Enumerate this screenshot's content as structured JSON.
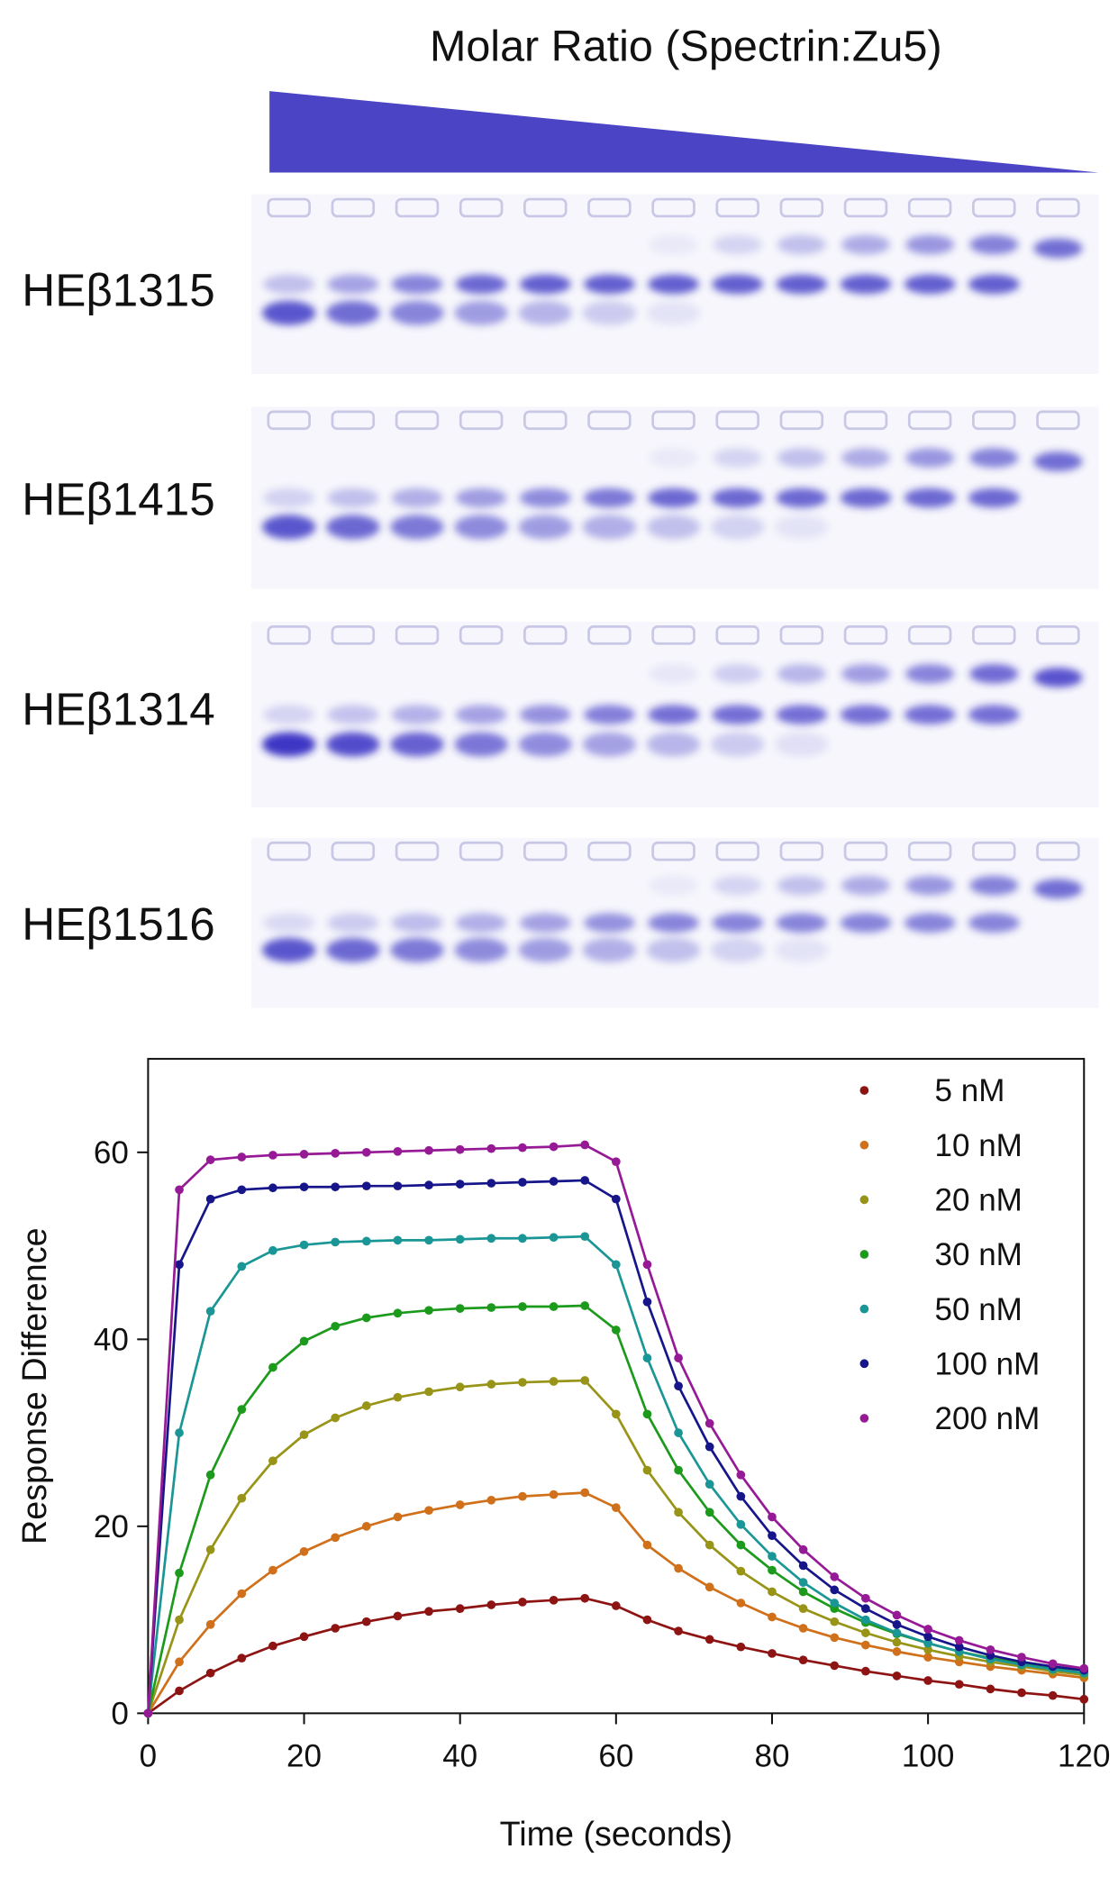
{
  "gel_panel": {
    "title": "Molar Ratio (Spectrin:Zu5)",
    "rows": [
      "HEβ1315",
      "HEβ1415",
      "HEβ1314",
      "HEβ1516"
    ]
  },
  "chart_data": {
    "type": "scatter",
    "fit_line": true,
    "x_label": "Time (seconds)",
    "y_label": "Response Difference",
    "xlim": [
      0,
      120
    ],
    "xticks": [
      0,
      20,
      40,
      60,
      80,
      100,
      120
    ],
    "ylim": [
      0,
      70
    ],
    "yticks": [
      0,
      20,
      40,
      60
    ],
    "legend": "top-right",
    "x": [
      0,
      4,
      8,
      12,
      16,
      20,
      24,
      28,
      32,
      36,
      40,
      44,
      48,
      52,
      56,
      60,
      64,
      68,
      72,
      76,
      80,
      84,
      88,
      92,
      96,
      100,
      104,
      108,
      112,
      116,
      120
    ],
    "series": [
      {
        "name": "5 nM",
        "color": "#8e1414",
        "values": [
          0,
          2.4,
          4.3,
          5.9,
          7.2,
          8.2,
          9.1,
          9.8,
          10.4,
          10.9,
          11.2,
          11.6,
          11.9,
          12.1,
          12.3,
          11.5,
          10,
          8.8,
          7.9,
          7.1,
          6.4,
          5.7,
          5.1,
          4.5,
          4.0,
          3.5,
          3.1,
          2.6,
          2.2,
          1.9,
          1.5
        ]
      },
      {
        "name": "10 nM",
        "color": "#d0701a",
        "values": [
          0,
          5.5,
          9.5,
          12.8,
          15.3,
          17.3,
          18.8,
          20,
          21,
          21.7,
          22.3,
          22.8,
          23.2,
          23.4,
          23.6,
          22,
          18,
          15.5,
          13.5,
          11.8,
          10.3,
          9.1,
          8.1,
          7.3,
          6.6,
          6,
          5.5,
          5,
          4.6,
          4.2,
          3.8
        ]
      },
      {
        "name": "20 nM",
        "color": "#989418",
        "values": [
          0,
          10,
          17.5,
          23,
          27,
          29.8,
          31.6,
          32.9,
          33.8,
          34.4,
          34.9,
          35.2,
          35.4,
          35.5,
          35.6,
          32,
          26,
          21.5,
          18,
          15.2,
          13,
          11.2,
          9.8,
          8.6,
          7.6,
          6.8,
          6.1,
          5.5,
          5,
          4.5,
          4.1
        ]
      },
      {
        "name": "30 nM",
        "color": "#1c9a1c",
        "values": [
          0,
          15,
          25.5,
          32.5,
          37,
          39.8,
          41.4,
          42.3,
          42.8,
          43.1,
          43.3,
          43.4,
          43.5,
          43.5,
          43.6,
          41,
          32,
          26,
          21.5,
          18,
          15.3,
          13,
          11.2,
          9.7,
          8.5,
          7.5,
          6.6,
          5.9,
          5.3,
          4.8,
          4.3
        ]
      },
      {
        "name": "50 nM",
        "color": "#1a9696",
        "values": [
          0,
          30,
          43,
          47.8,
          49.5,
          50.1,
          50.4,
          50.5,
          50.6,
          50.6,
          50.7,
          50.8,
          50.8,
          50.9,
          51,
          48,
          38,
          30,
          24.5,
          20.2,
          16.8,
          14,
          11.8,
          10,
          8.6,
          7.5,
          6.6,
          5.8,
          5.2,
          4.7,
          4.3
        ]
      },
      {
        "name": "100 nM",
        "color": "#16168a",
        "values": [
          0,
          48,
          55,
          56,
          56.2,
          56.3,
          56.3,
          56.4,
          56.4,
          56.5,
          56.6,
          56.7,
          56.8,
          56.9,
          57,
          55,
          44,
          35,
          28.5,
          23.2,
          19,
          15.8,
          13.2,
          11.2,
          9.5,
          8.2,
          7.1,
          6.2,
          5.5,
          5,
          4.6
        ]
      },
      {
        "name": "200 nM",
        "color": "#961a96",
        "values": [
          0,
          56,
          59.2,
          59.5,
          59.7,
          59.8,
          59.9,
          60,
          60.1,
          60.2,
          60.3,
          60.4,
          60.5,
          60.6,
          60.8,
          59,
          48,
          38,
          31,
          25.5,
          21,
          17.5,
          14.6,
          12.3,
          10.5,
          9,
          7.8,
          6.8,
          6,
          5.3,
          4.8
        ]
      }
    ]
  }
}
